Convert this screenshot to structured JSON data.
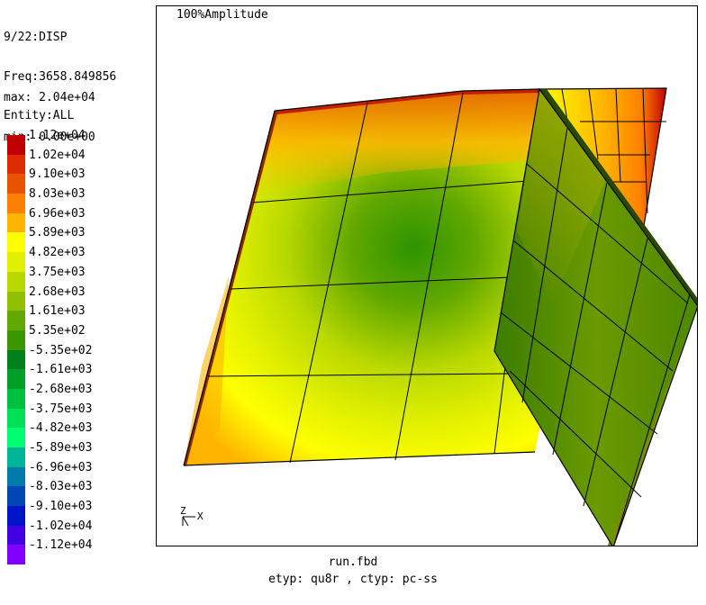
{
  "header": {
    "step": "9/22:DISP",
    "freq": "Freq:3658.849856",
    "entity": "Entity:ALL",
    "max": "max: 2.04e+04",
    "min": "min: 0.00e+00"
  },
  "legend": [
    {
      "label": "1.12e+04",
      "color": "#c00000"
    },
    {
      "label": "1.02e+04",
      "color": "#dc2c00"
    },
    {
      "label": "9.10e+03",
      "color": "#e65400"
    },
    {
      "label": "8.03e+03",
      "color": "#ff8000"
    },
    {
      "label": "6.96e+03",
      "color": "#ffb400"
    },
    {
      "label": "5.89e+03",
      "color": "#ffff00"
    },
    {
      "label": "4.82e+03",
      "color": "#e1f000"
    },
    {
      "label": "3.75e+03",
      "color": "#b8d800"
    },
    {
      "label": "2.68e+03",
      "color": "#90c000"
    },
    {
      "label": "1.61e+03",
      "color": "#62a800"
    },
    {
      "label": "5.35e+02",
      "color": "#3c9600"
    },
    {
      "label": "-5.35e+02",
      "color": "#00801a"
    },
    {
      "label": "-1.61e+03",
      "color": "#00a028"
    },
    {
      "label": "-2.68e+03",
      "color": "#00c040"
    },
    {
      "label": "-3.75e+03",
      "color": "#00e054"
    },
    {
      "label": "-4.82e+03",
      "color": "#00ff70"
    },
    {
      "label": "-5.89e+03",
      "color": "#00b498"
    },
    {
      "label": "-6.96e+03",
      "color": "#007caa"
    },
    {
      "label": "-8.03e+03",
      "color": "#0046b4"
    },
    {
      "label": "-9.10e+03",
      "color": "#0014c8"
    },
    {
      "label": "-1.02e+04",
      "color": "#4000e0"
    },
    {
      "label": "-1.12e+04",
      "color": "#8000ff"
    }
  ],
  "viewport": {
    "amplitude": "100%Amplitude",
    "axes": {
      "z": "Z",
      "x": "X"
    }
  },
  "footer": {
    "file": "run.fbd",
    "types": "etyp: qu8r , ctyp: pc-ss"
  }
}
